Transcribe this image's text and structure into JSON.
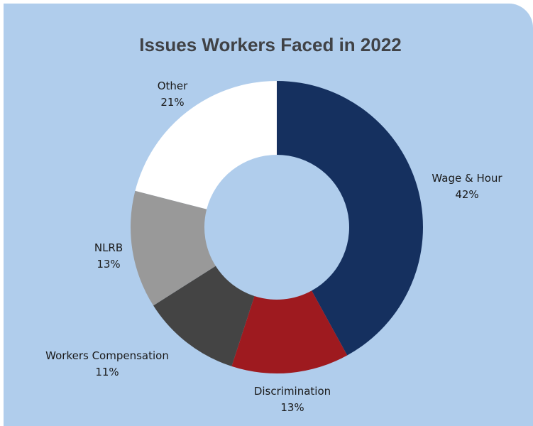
{
  "chart_data": {
    "type": "pie",
    "variant": "donut",
    "title": "Issues Workers Faced in 2022",
    "slices": [
      {
        "label": "Wage & Hour",
        "pct_label": "42%",
        "value": 42,
        "color": "#15305f"
      },
      {
        "label": "Discrimination",
        "pct_label": "13%",
        "value": 13,
        "color": "#9e1a1f"
      },
      {
        "label": "Workers Compensation",
        "pct_label": "11%",
        "value": 11,
        "color": "#444444"
      },
      {
        "label": "NLRB",
        "pct_label": "13%",
        "value": 13,
        "color": "#999999"
      },
      {
        "label": "Other",
        "pct_label": "21%",
        "value": 21,
        "color": "#ffffff"
      }
    ],
    "background_color": "#b0cdec",
    "title_color": "#404246"
  }
}
